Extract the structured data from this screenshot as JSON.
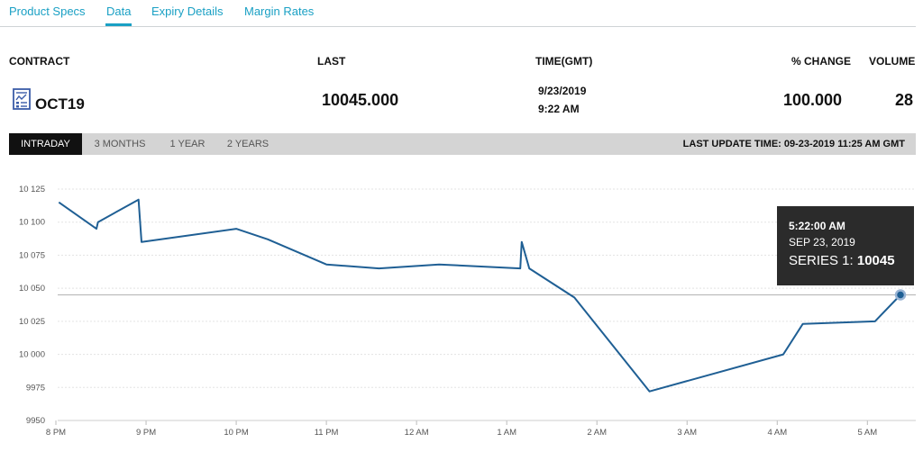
{
  "tabs": [
    {
      "label": "Product Specs"
    },
    {
      "label": "Data"
    },
    {
      "label": "Expiry Details"
    },
    {
      "label": "Margin Rates"
    }
  ],
  "quote_headers": {
    "contract": "CONTRACT",
    "last": "LAST",
    "time": "TIME(GMT)",
    "pct_change": "% CHANGE",
    "volume": "VOLUME"
  },
  "quote": {
    "contract": "OCT19",
    "last": "10045.000",
    "date": "9/23/2019",
    "time": "9:22 AM",
    "pct_change": "100.000",
    "volume": "28"
  },
  "ranges": [
    {
      "label": "INTRADAY"
    },
    {
      "label": "3 MONTHS"
    },
    {
      "label": "1 YEAR"
    },
    {
      "label": "2 YEARS"
    }
  ],
  "last_update": "LAST UPDATE TIME: 09-23-2019 11:25 AM GMT",
  "tooltip": {
    "time": "5:22:00 AM",
    "date": "SEP 23, 2019",
    "series_label": "SERIES 1:",
    "series_value": "10045"
  },
  "colors": {
    "accent": "#1aa0c4",
    "line": "#1f5f94",
    "range_bar": "#d4d4d4",
    "tooltip_bg": "#2b2b2b"
  },
  "chart_data": {
    "type": "line",
    "ylim": [
      9950,
      10125
    ],
    "y_ticks": [
      9950,
      9975,
      10000,
      10025,
      10050,
      10075,
      10100,
      10125
    ],
    "y_tick_labels": [
      "9950",
      "9975",
      "10 000",
      "10 025",
      "10 050",
      "10 075",
      "10 100",
      "10 125"
    ],
    "xlim": [
      0,
      565
    ],
    "x_ticks": [
      {
        "label": "8 PM",
        "minutes": 0
      },
      {
        "label": "9 PM",
        "minutes": 60
      },
      {
        "label": "10 PM",
        "minutes": 120
      },
      {
        "label": "11 PM",
        "minutes": 180
      },
      {
        "label": "12 AM",
        "minutes": 240
      },
      {
        "label": "1 AM",
        "minutes": 300
      },
      {
        "label": "2 AM",
        "minutes": 360
      },
      {
        "label": "3 AM",
        "minutes": 420
      },
      {
        "label": "4 AM",
        "minutes": 480
      },
      {
        "label": "5 AM",
        "minutes": 540
      }
    ],
    "series": [
      {
        "points": [
          [
            2,
            10115
          ],
          [
            27,
            10095
          ],
          [
            28,
            10100
          ],
          [
            55,
            10117
          ],
          [
            57,
            10085
          ],
          [
            120,
            10095
          ],
          [
            141,
            10087
          ],
          [
            180,
            10068
          ],
          [
            215,
            10065
          ],
          [
            255,
            10068
          ],
          [
            309,
            10065
          ],
          [
            310,
            10085
          ],
          [
            315,
            10065
          ],
          [
            345,
            10043
          ],
          [
            395,
            9972
          ],
          [
            484,
            10000
          ],
          [
            497,
            10023
          ],
          [
            545,
            10025
          ],
          [
            562,
            10045
          ]
        ]
      }
    ],
    "crosshair_y": 10045,
    "highlight_point": [
      562,
      10045
    ],
    "grid": true
  }
}
